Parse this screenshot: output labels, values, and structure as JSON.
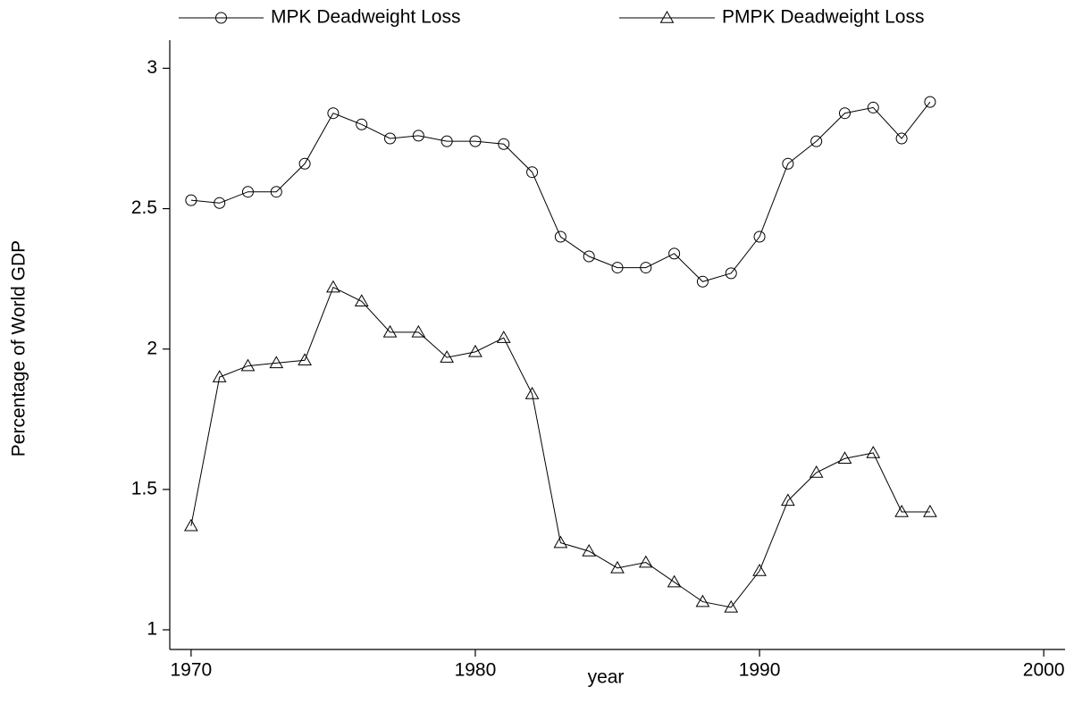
{
  "chart_data": {
    "type": "line",
    "x_label": "year",
    "y_label": "Percentage of World GDP",
    "x": [
      1970,
      1971,
      1972,
      1973,
      1974,
      1975,
      1976,
      1977,
      1978,
      1979,
      1980,
      1981,
      1982,
      1983,
      1984,
      1985,
      1986,
      1987,
      1988,
      1989,
      1990,
      1991,
      1992,
      1993,
      1994,
      1995,
      1996
    ],
    "series": [
      {
        "name": "MPK Deadweight Loss",
        "color": "#000000",
        "marker": "circle",
        "values": [
          2.53,
          2.52,
          2.56,
          2.56,
          2.66,
          2.84,
          2.8,
          2.75,
          2.76,
          2.74,
          2.74,
          2.73,
          2.63,
          2.4,
          2.33,
          2.29,
          2.29,
          2.34,
          2.24,
          2.27,
          2.4,
          2.66,
          2.74,
          2.84,
          2.86,
          2.75,
          2.88
        ]
      },
      {
        "name": "PMPK Deadweight Loss",
        "color": "#000000",
        "marker": "triangle",
        "values": [
          1.37,
          1.9,
          1.94,
          1.95,
          1.96,
          2.22,
          2.17,
          2.06,
          2.06,
          1.97,
          1.99,
          2.04,
          1.84,
          1.31,
          1.28,
          1.22,
          1.24,
          1.17,
          1.1,
          1.08,
          1.21,
          1.46,
          1.56,
          1.61,
          1.63,
          1.42,
          1.42
        ]
      }
    ],
    "xlim": [
      1969.25,
      2000.75
    ],
    "xticks": [
      1970,
      1980,
      1990,
      2000
    ],
    "ylim": [
      0.93,
      3.1
    ],
    "yticks": [
      1,
      1.5,
      2,
      2.5,
      3
    ],
    "legend": "top",
    "grid": false
  }
}
